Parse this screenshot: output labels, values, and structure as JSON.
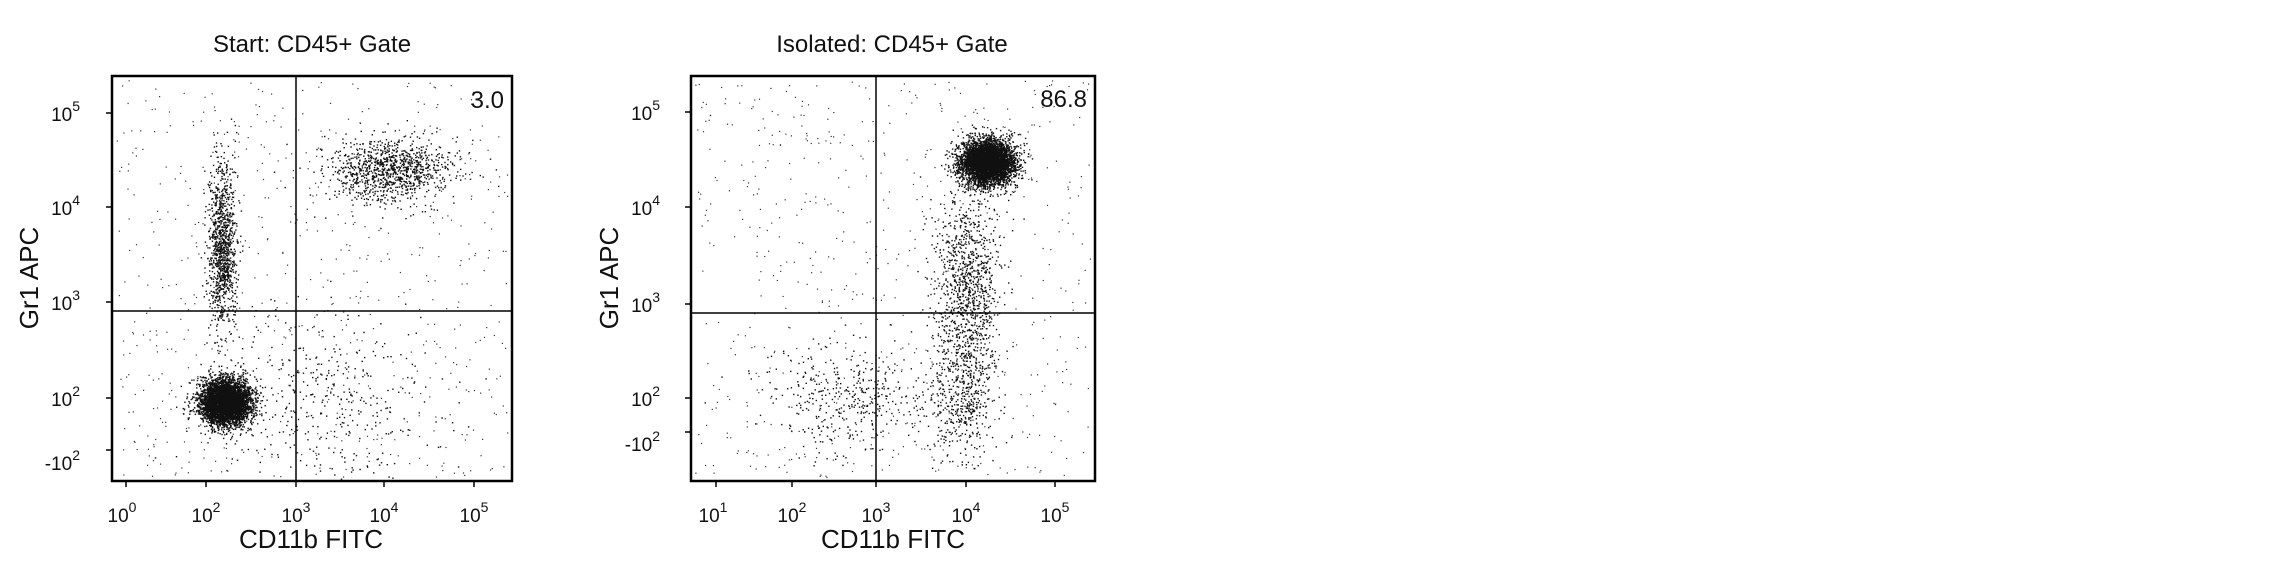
{
  "figure": {
    "panels": [
      {
        "title": "Start: CD45+ Gate",
        "xlabel": "CD11b FITC",
        "ylabel": "Gr1 APC",
        "quadrant_value": "3.0",
        "xticks": [
          {
            "base": "10",
            "exp": "0"
          },
          {
            "base": "10",
            "exp": "2"
          },
          {
            "base": "10",
            "exp": "3"
          },
          {
            "base": "10",
            "exp": "4"
          },
          {
            "base": "10",
            "exp": "5"
          }
        ],
        "yticks": [
          {
            "base": "10",
            "exp": "5"
          },
          {
            "base": "10",
            "exp": "4"
          },
          {
            "base": "10",
            "exp": "3"
          },
          {
            "base": "10",
            "exp": "2"
          },
          {
            "base": "-10",
            "exp": "2"
          }
        ]
      },
      {
        "title": "Isolated: CD45+ Gate",
        "xlabel": "CD11b FITC",
        "ylabel": "Gr1 APC",
        "quadrant_value": "86.8",
        "xticks": [
          {
            "base": "10",
            "exp": "1"
          },
          {
            "base": "10",
            "exp": "2"
          },
          {
            "base": "10",
            "exp": "3"
          },
          {
            "base": "10",
            "exp": "4"
          },
          {
            "base": "10",
            "exp": "5"
          }
        ],
        "yticks": [
          {
            "base": "10",
            "exp": "5"
          },
          {
            "base": "10",
            "exp": "4"
          },
          {
            "base": "10",
            "exp": "3"
          },
          {
            "base": "10",
            "exp": "2"
          },
          {
            "base": "-10",
            "exp": "2"
          }
        ]
      }
    ]
  },
  "chart_data": [
    {
      "type": "scatter",
      "title": "Start: CD45+ Gate",
      "xlabel": "CD11b FITC",
      "ylabel": "Gr1 APC",
      "x_scale": "biexponential",
      "y_scale": "biexponential",
      "x_tick_labels": [
        "10^0",
        "10^2",
        "10^3",
        "10^4",
        "10^5"
      ],
      "y_tick_labels": [
        "-10^2",
        "10^2",
        "10^3",
        "10^4",
        "10^5"
      ],
      "gates": {
        "x": 1000,
        "y": 800
      },
      "quadrant_percentages": {
        "upper_right": 3.0
      },
      "populations": [
        {
          "center_x": 150,
          "center_y": 60,
          "relative_density": "very high"
        },
        {
          "center_x": 150,
          "center_y": 4000,
          "relative_density": "medium"
        },
        {
          "center_x": 12000,
          "center_y": 25000,
          "relative_density": "medium"
        },
        {
          "center_x": 2000,
          "center_y": 60,
          "relative_density": "low"
        }
      ]
    },
    {
      "type": "scatter",
      "title": "Isolated: CD45+ Gate",
      "xlabel": "CD11b FITC",
      "ylabel": "Gr1 APC",
      "x_scale": "log",
      "y_scale": "biexponential",
      "x_tick_labels": [
        "10^1",
        "10^2",
        "10^3",
        "10^4",
        "10^5"
      ],
      "y_tick_labels": [
        "-10^2",
        "10^2",
        "10^3",
        "10^4",
        "10^5"
      ],
      "gates": {
        "x": 1000,
        "y": 800
      },
      "quadrant_percentages": {
        "upper_right": 86.8
      },
      "populations": [
        {
          "center_x": 16000,
          "center_y": 30000,
          "relative_density": "very high"
        },
        {
          "center_x": 9000,
          "center_y": 1500,
          "relative_density": "medium"
        },
        {
          "center_x": 8000,
          "center_y": 100,
          "relative_density": "low"
        },
        {
          "center_x": 400,
          "center_y": 100,
          "relative_density": "low"
        }
      ]
    }
  ]
}
